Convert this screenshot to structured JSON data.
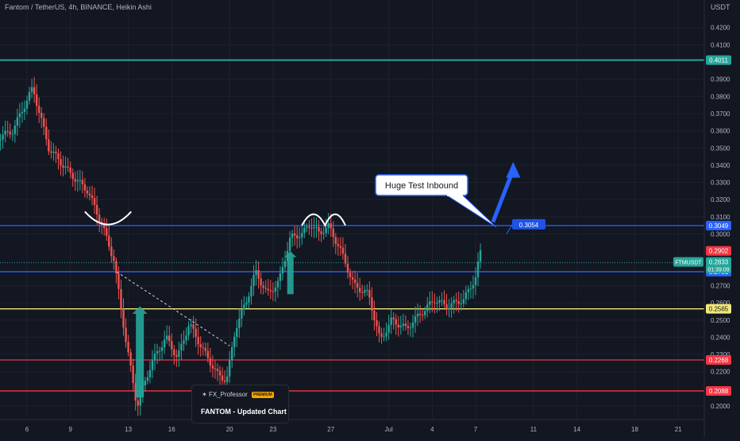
{
  "header": {
    "title": "Fantom / TetherUS, 4h, BINANCE, Heikin Ashi"
  },
  "currency": "USDT",
  "colors": {
    "bg": "#131722",
    "grid": "#1e222d",
    "up": "#26a69a",
    "down": "#ef5350",
    "green_level": "#26a69a",
    "blue_level": "#2962ff",
    "yellow_level": "#f2e877",
    "red_level": "#f23645",
    "arrow_green": "#26a69a",
    "arrow_blue": "#2962ff",
    "text": "#b2b5be"
  },
  "chart_data": {
    "type": "candlestick",
    "style": "Heikin Ashi",
    "symbol": "FTMUSDT",
    "exchange": "BINANCE",
    "interval": "4h",
    "ylim": [
      0.19,
      0.425
    ],
    "grid": true,
    "y_ticks": [
      "0.4200",
      "0.4100",
      "0.3900",
      "0.3800",
      "0.3700",
      "0.3600",
      "0.3500",
      "0.3400",
      "0.3300",
      "0.3200",
      "0.3100",
      "0.3000",
      "0.2700",
      "0.2600",
      "0.2500",
      "0.2400",
      "0.2300",
      "0.2200",
      "0.2000"
    ],
    "x_ticks": [
      "6",
      "9",
      "13",
      "16",
      "20",
      "23",
      "27",
      "Jul",
      "4",
      "7",
      "11",
      "14",
      "18",
      "21"
    ],
    "horizontal_levels": [
      {
        "value": 0.4011,
        "label": "0.4011",
        "color": "green"
      },
      {
        "value": 0.3049,
        "label": "0.3049",
        "color": "blue"
      },
      {
        "value": 0.2781,
        "label": "0.2781",
        "color": "blue"
      },
      {
        "value": 0.2565,
        "label": "0.2565",
        "color": "yellow"
      },
      {
        "value": 0.2268,
        "label": "0.2268",
        "color": "red"
      },
      {
        "value": 0.2088,
        "label": "0.2088",
        "color": "red"
      }
    ],
    "price_tags": [
      {
        "value": 0.2902,
        "label": "0.2902",
        "kind": "red"
      },
      {
        "value": 0.2833,
        "label": "0.2833",
        "kind": "green",
        "name": "FTMUSDT",
        "countdown": "01:39:09"
      }
    ],
    "annotations": {
      "callout": "Huge Test Inbound",
      "target_label": "0.3054",
      "target_value": 0.3054
    },
    "candles_summary": [
      {
        "x": "Jun 5",
        "close": 0.348
      },
      {
        "x": "Jun 7",
        "close": 0.372
      },
      {
        "x": "Jun 9",
        "close": 0.338
      },
      {
        "x": "Jun 11",
        "close": 0.28
      },
      {
        "x": "Jun 13",
        "close": 0.21
      },
      {
        "x": "Jun 15",
        "close": 0.245
      },
      {
        "x": "Jun 17",
        "close": 0.232
      },
      {
        "x": "Jun 19",
        "close": 0.22
      },
      {
        "x": "Jun 21",
        "close": 0.268
      },
      {
        "x": "Jun 23",
        "close": 0.262
      },
      {
        "x": "Jun 25",
        "close": 0.3
      },
      {
        "x": "Jun 27",
        "close": 0.288
      },
      {
        "x": "Jun 29",
        "close": 0.258
      },
      {
        "x": "Jul 1",
        "close": 0.24
      },
      {
        "x": "Jul 3",
        "close": 0.255
      },
      {
        "x": "Jul 5",
        "close": 0.258
      },
      {
        "x": "Jul 7",
        "close": 0.266
      },
      {
        "x": "Jul 8",
        "close": 0.2833
      }
    ]
  },
  "branding": {
    "handle": "FX_Professor",
    "badge": "PREMIUM",
    "title": "FANTOM - Updated Chart"
  }
}
